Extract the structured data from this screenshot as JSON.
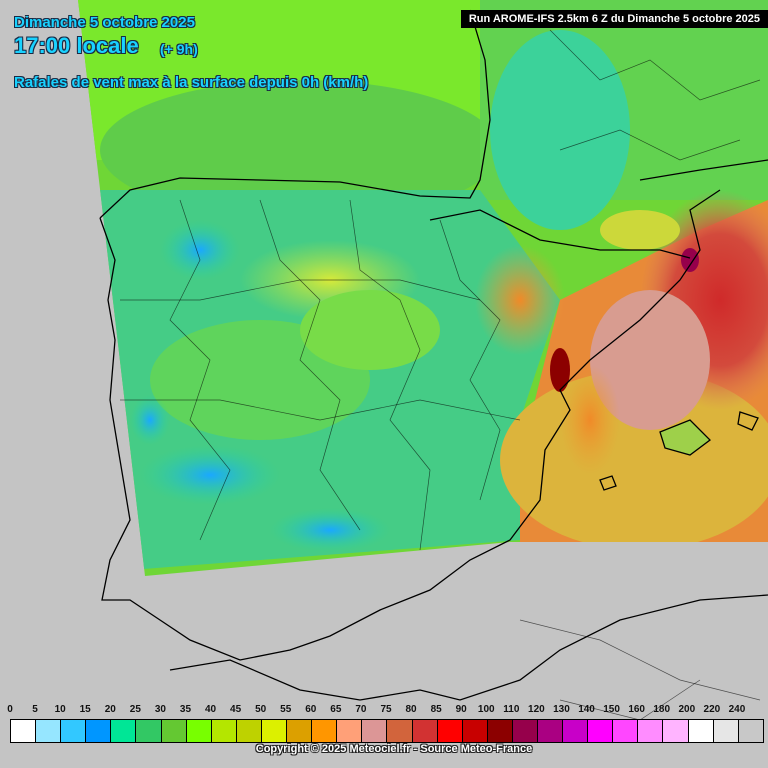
{
  "header": {
    "date": "Dimanche 5 octobre 2025",
    "time": "17:00 locale",
    "offset": "(+ 9h)",
    "parameter": "Rafales de vent max à la surface depuis 0h (km/h)"
  },
  "run_label": "Run AROME-IFS 2.5km 6 Z du Dimanche 5 octobre 2025",
  "legend": {
    "ticks": [
      "0",
      "5",
      "10",
      "15",
      "20",
      "25",
      "30",
      "35",
      "40",
      "45",
      "50",
      "55",
      "60",
      "65",
      "70",
      "75",
      "80",
      "85",
      "90",
      "100",
      "110",
      "120",
      "130",
      "140",
      "150",
      "160",
      "180",
      "200",
      "220",
      "240"
    ],
    "colors": [
      "#ffffff",
      "#96e6ff",
      "#32c8ff",
      "#0096ff",
      "#00e696",
      "#32c864",
      "#64c832",
      "#78ff00",
      "#b4e600",
      "#bed200",
      "#dcf000",
      "#dca000",
      "#ff9600",
      "#ffa078",
      "#dc9696",
      "#d2643c",
      "#d23232",
      "#ff0000",
      "#c80000",
      "#8c0000",
      "#96004b",
      "#aa0082",
      "#c800c8",
      "#ff00ff",
      "#ff46ff",
      "#ff8cff",
      "#ffb4ff",
      "#ffffff",
      "#e6e6e6",
      "#c8c8c8"
    ]
  },
  "copyright": "Copyright © 2025 Meteociel.fr - Source Meteo-France"
}
